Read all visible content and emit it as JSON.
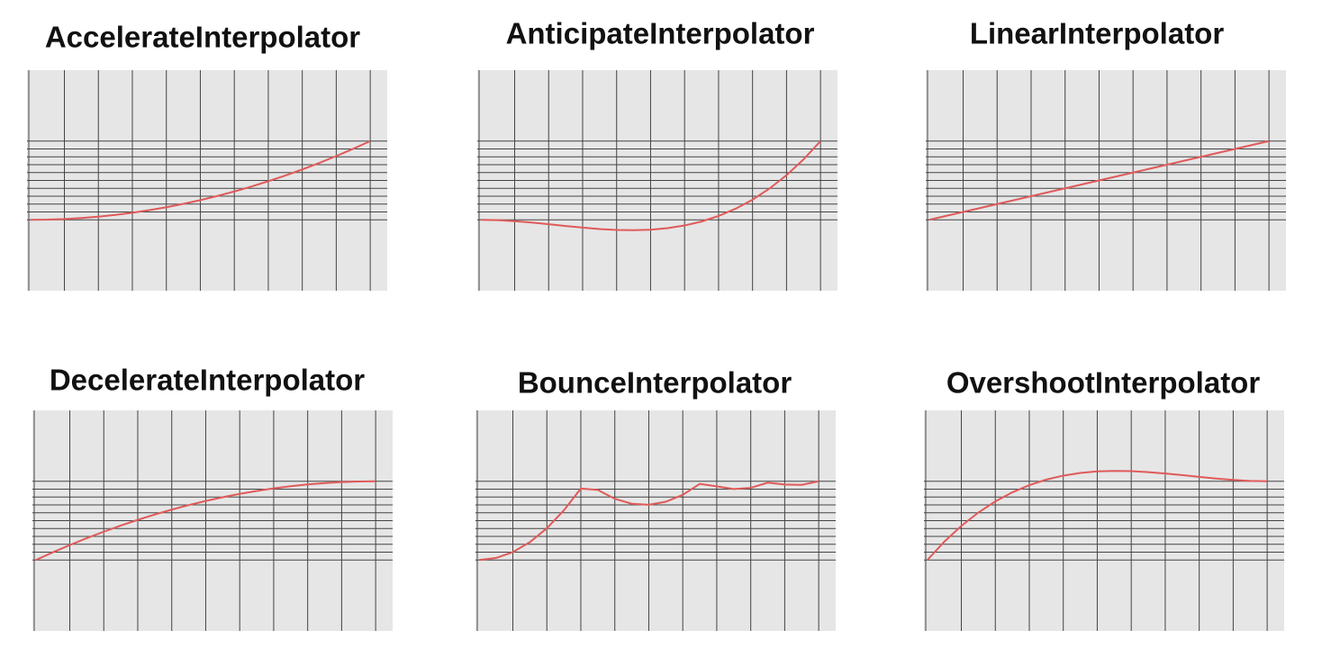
{
  "chart_data": [
    {
      "type": "line",
      "title": "AccelerateInterpolator",
      "x": [
        0,
        0.05,
        0.1,
        0.15,
        0.2,
        0.25,
        0.3,
        0.35,
        0.4,
        0.45,
        0.5,
        0.55,
        0.6,
        0.65,
        0.7,
        0.75,
        0.8,
        0.85,
        0.9,
        0.95,
        1
      ],
      "series": [
        {
          "color": "#e05a5a",
          "values": [
            0,
            0.0025,
            0.01,
            0.0225,
            0.04,
            0.0625,
            0.09,
            0.1225,
            0.16,
            0.2025,
            0.25,
            0.3025,
            0.36,
            0.4225,
            0.49,
            0.5625,
            0.64,
            0.7225,
            0.81,
            0.9025,
            1
          ]
        }
      ],
      "xlim": [
        -0.01,
        1.05
      ],
      "ylim": [
        -0.9,
        1.9
      ],
      "xticks": [
        0.1,
        0.2,
        0.3,
        0.4,
        0.5,
        0.6,
        0.7,
        0.8,
        0.9,
        1
      ],
      "yticks": [
        0,
        0.1,
        0.2,
        0.3,
        0.4,
        0.5,
        0.6,
        0.7,
        0.8,
        0.9,
        1
      ],
      "grid": true
    },
    {
      "type": "line",
      "title": "AnticipateInterpolator",
      "x": [
        0,
        0.05,
        0.1,
        0.15,
        0.2,
        0.25,
        0.3,
        0.35,
        0.4,
        0.45,
        0.5,
        0.55,
        0.6,
        0.65,
        0.7,
        0.75,
        0.8,
        0.85,
        0.9,
        0.95,
        1
      ],
      "series": [
        {
          "color": "#e05a5a",
          "values": [
            0,
            -0.0046,
            -0.017,
            -0.0349,
            -0.056,
            -0.0781,
            -0.099,
            -0.1164,
            -0.128,
            -0.1316,
            -0.125,
            -0.1059,
            -0.072,
            -0.0211,
            0.049,
            0.1406,
            0.256,
            0.3974,
            0.567,
            0.7671,
            1
          ]
        }
      ],
      "xlim": [
        -0.01,
        1.05
      ],
      "ylim": [
        -0.9,
        1.9
      ],
      "xticks": [
        0.1,
        0.2,
        0.3,
        0.4,
        0.5,
        0.6,
        0.7,
        0.8,
        0.9,
        1
      ],
      "yticks": [
        0,
        0.1,
        0.2,
        0.3,
        0.4,
        0.5,
        0.6,
        0.7,
        0.8,
        0.9,
        1
      ],
      "grid": true
    },
    {
      "type": "line",
      "title": "LinearInterpolator",
      "x": [
        0,
        0.05,
        0.1,
        0.15,
        0.2,
        0.25,
        0.3,
        0.35,
        0.4,
        0.45,
        0.5,
        0.55,
        0.6,
        0.65,
        0.7,
        0.75,
        0.8,
        0.85,
        0.9,
        0.95,
        1
      ],
      "series": [
        {
          "color": "#e05a5a",
          "values": [
            0,
            0.05,
            0.1,
            0.15,
            0.2,
            0.25,
            0.3,
            0.35,
            0.4,
            0.45,
            0.5,
            0.55,
            0.6,
            0.65,
            0.7,
            0.75,
            0.8,
            0.85,
            0.9,
            0.95,
            1
          ]
        }
      ],
      "xlim": [
        -0.01,
        1.05
      ],
      "ylim": [
        -0.9,
        1.9
      ],
      "xticks": [
        0.1,
        0.2,
        0.3,
        0.4,
        0.5,
        0.6,
        0.7,
        0.8,
        0.9,
        1
      ],
      "yticks": [
        0,
        0.1,
        0.2,
        0.3,
        0.4,
        0.5,
        0.6,
        0.7,
        0.8,
        0.9,
        1
      ],
      "grid": true
    },
    {
      "type": "line",
      "title": "DecelerateInterpolator",
      "x": [
        0,
        0.05,
        0.1,
        0.15,
        0.2,
        0.25,
        0.3,
        0.35,
        0.4,
        0.45,
        0.5,
        0.55,
        0.6,
        0.65,
        0.7,
        0.75,
        0.8,
        0.85,
        0.9,
        0.95,
        1
      ],
      "series": [
        {
          "color": "#e05a5a",
          "values": [
            0,
            0.0975,
            0.19,
            0.2775,
            0.36,
            0.4375,
            0.51,
            0.5775,
            0.64,
            0.6975,
            0.75,
            0.7975,
            0.84,
            0.8775,
            0.91,
            0.9375,
            0.96,
            0.9775,
            0.99,
            0.9975,
            1
          ]
        }
      ],
      "xlim": [
        -0.01,
        1.05
      ],
      "ylim": [
        -0.9,
        1.9
      ],
      "xticks": [
        0.1,
        0.2,
        0.3,
        0.4,
        0.5,
        0.6,
        0.7,
        0.8,
        0.9,
        1
      ],
      "yticks": [
        0,
        0.1,
        0.2,
        0.3,
        0.4,
        0.5,
        0.6,
        0.7,
        0.8,
        0.9,
        1
      ],
      "grid": true
    },
    {
      "type": "line",
      "title": "BounceInterpolator",
      "x": [
        0,
        0.05,
        0.1,
        0.15,
        0.2,
        0.25,
        0.3,
        0.35,
        0.4,
        0.45,
        0.5,
        0.55,
        0.6,
        0.65,
        0.7,
        0.75,
        0.8,
        0.85,
        0.9,
        0.95,
        1
      ],
      "series": [
        {
          "color": "#e05a5a",
          "values": [
            0,
            0.0252,
            0.1008,
            0.2268,
            0.4033,
            0.6301,
            0.9074,
            0.8904,
            0.7771,
            0.7141,
            0.7016,
            0.7395,
            0.8278,
            0.9665,
            0.9357,
            0.9009,
            0.9165,
            0.9826,
            0.9588,
            0.9542,
            1
          ]
        }
      ],
      "xlim": [
        -0.01,
        1.05
      ],
      "ylim": [
        -0.9,
        1.9
      ],
      "xticks": [
        0.1,
        0.2,
        0.3,
        0.4,
        0.5,
        0.6,
        0.7,
        0.8,
        0.9,
        1
      ],
      "yticks": [
        0,
        0.1,
        0.2,
        0.3,
        0.4,
        0.5,
        0.6,
        0.7,
        0.8,
        0.9,
        1
      ],
      "grid": true
    },
    {
      "type": "line",
      "title": "OvershootInterpolator",
      "x": [
        0,
        0.05,
        0.1,
        0.15,
        0.2,
        0.25,
        0.3,
        0.35,
        0.4,
        0.45,
        0.5,
        0.55,
        0.6,
        0.65,
        0.7,
        0.75,
        0.8,
        0.85,
        0.9,
        0.95,
        1
      ],
      "series": [
        {
          "color": "#e05a5a",
          "values": [
            0,
            0.2329,
            0.433,
            0.6026,
            0.744,
            0.8594,
            0.951,
            1.0211,
            1.072,
            1.1059,
            1.125,
            1.1316,
            1.128,
            1.1164,
            1.099,
            1.0781,
            1.056,
            1.0349,
            1.017,
            1.0046,
            1
          ]
        }
      ],
      "xlim": [
        -0.01,
        1.05
      ],
      "ylim": [
        -0.9,
        1.9
      ],
      "xticks": [
        0.1,
        0.2,
        0.3,
        0.4,
        0.5,
        0.6,
        0.7,
        0.8,
        0.9,
        1
      ],
      "yticks": [
        0,
        0.1,
        0.2,
        0.3,
        0.4,
        0.5,
        0.6,
        0.7,
        0.8,
        0.9,
        1
      ],
      "grid": true
    }
  ]
}
